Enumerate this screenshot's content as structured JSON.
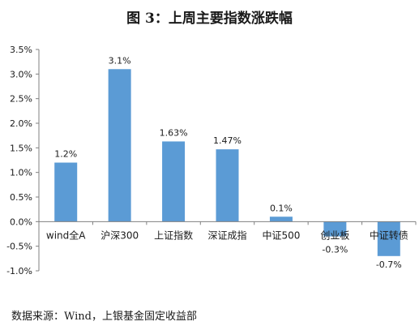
{
  "title": "图 3：上周主要指数涨跌幅",
  "source": "数据来源：Wind，上银基金固定收益部",
  "chart_data": {
    "type": "bar",
    "categories": [
      "wind全A",
      "沪深300",
      "上证指数",
      "深证成指",
      "中证500",
      "创业板",
      "中证转债"
    ],
    "values": [
      1.2,
      3.1,
      1.63,
      1.47,
      0.1,
      -0.3,
      -0.7
    ],
    "data_labels": [
      "1.2%",
      "3.1%",
      "1.63%",
      "1.47%",
      "0.1%",
      "-0.3%",
      "-0.7%"
    ],
    "ylim": [
      -1.0,
      3.5
    ],
    "yticks": [
      3.5,
      3.0,
      2.5,
      2.0,
      1.5,
      1.0,
      0.5,
      0.0,
      -0.5,
      -1.0
    ],
    "ytick_labels": [
      "3.5%",
      "3.0%",
      "2.5%",
      "2.0%",
      "1.5%",
      "1.0%",
      "0.5%",
      "0.0%",
      "-0.5%",
      "-1.0%"
    ],
    "bar_color": "#5b9bd5",
    "grid": false,
    "legend": "none"
  }
}
